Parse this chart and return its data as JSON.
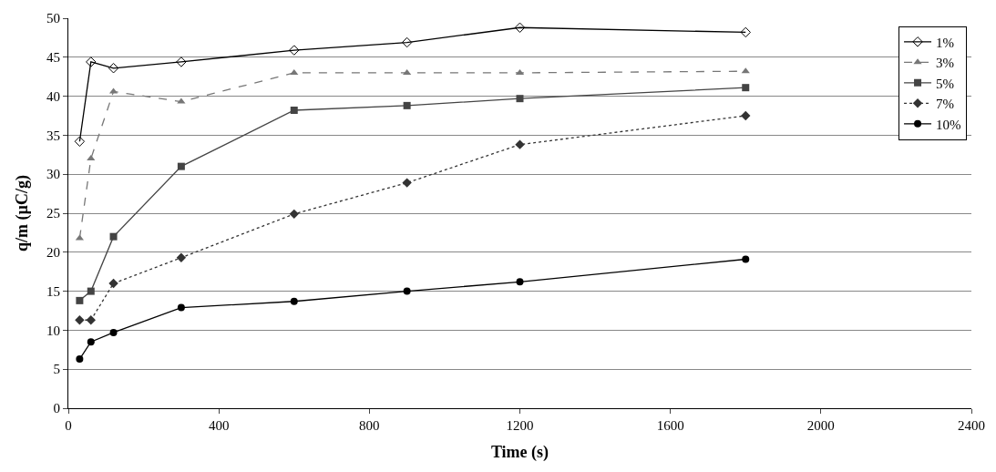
{
  "chart_data": {
    "type": "line",
    "xlabel": "Time (s)",
    "ylabel": "q/m (µC/g)",
    "x": [
      30,
      60,
      120,
      300,
      600,
      900,
      1200,
      1800
    ],
    "xlim": [
      0,
      2400
    ],
    "xticks": [
      0,
      400,
      800,
      1200,
      1600,
      2000,
      2400
    ],
    "ylim": [
      0,
      50
    ],
    "yticks": [
      0,
      5,
      10,
      15,
      20,
      25,
      30,
      35,
      40,
      45,
      50
    ],
    "grid": "y",
    "legend": "top right",
    "series": [
      {
        "name": "1%",
        "color": "#000000",
        "marker": "diamond-open",
        "line_style": "solid",
        "values": [
          34.2,
          44.4,
          43.6,
          44.4,
          45.9,
          46.9,
          48.8,
          48.2
        ]
      },
      {
        "name": "3%",
        "color": "#777777",
        "marker": "triangle",
        "line_style": "dashed",
        "values": [
          21.8,
          32,
          40.6,
          39.3,
          43,
          43,
          43,
          43.2
        ]
      },
      {
        "name": "5%",
        "color": "#444444",
        "marker": "square",
        "line_style": "solid",
        "values": [
          13.8,
          15,
          22,
          31,
          38.2,
          38.8,
          39.7,
          41.1
        ]
      },
      {
        "name": "7%",
        "color": "#333333",
        "marker": "diamond",
        "line_style": "dotted",
        "values": [
          11.3,
          11.3,
          16,
          19.3,
          24.9,
          28.9,
          33.8,
          37.5
        ]
      },
      {
        "name": "10%",
        "color": "#000000",
        "marker": "circle",
        "line_style": "solid",
        "values": [
          6.3,
          8.5,
          9.7,
          12.9,
          13.7,
          15,
          16.2,
          19.1
        ]
      }
    ]
  }
}
